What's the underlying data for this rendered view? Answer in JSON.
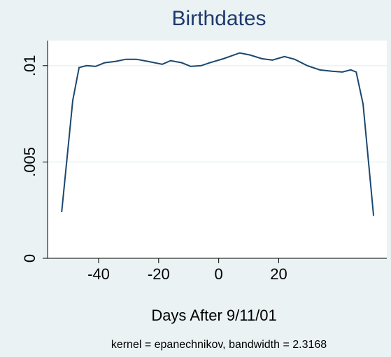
{
  "chart_data": {
    "type": "line",
    "title": "Birthdates",
    "x_label": "Days After 9/11/01",
    "note": "kernel = epanechnikov, bandwidth = 2.3168",
    "x": [
      -52.3,
      -48.6,
      -46.5,
      -44,
      -41,
      -38,
      -34.4,
      -30.9,
      -27.4,
      -23.5,
      -18.8,
      -16,
      -12.3,
      -9.3,
      -5.8,
      -3,
      1.6,
      7,
      10.5,
      14.4,
      17.9,
      21.9,
      25.3,
      29.5,
      33.7,
      37.7,
      41.2,
      44,
      45.8,
      48.1,
      51.6
    ],
    "series": [
      {
        "name": "density",
        "color": "#1a476f",
        "values": [
          0.0024,
          0.0082,
          0.0099,
          0.01,
          0.00996,
          0.01015,
          0.01022,
          0.01033,
          0.01033,
          0.01022,
          0.01007,
          0.01026,
          0.01015,
          0.00996,
          0.01,
          0.01015,
          0.01036,
          0.01066,
          0.01055,
          0.01036,
          0.01029,
          0.01047,
          0.01033,
          0.01,
          0.00978,
          0.00971,
          0.00967,
          0.00978,
          0.00967,
          0.008,
          0.0022
        ]
      }
    ],
    "xlim": [
      -57,
      56
    ],
    "xticks": [
      -40,
      -20,
      0,
      20
    ],
    "ylim": [
      0,
      0.0113
    ],
    "yticks": [
      0,
      {
        "value": 0.005,
        "label": ".005"
      },
      {
        "value": 0.01,
        "label": ".01"
      }
    ],
    "grid": true
  }
}
